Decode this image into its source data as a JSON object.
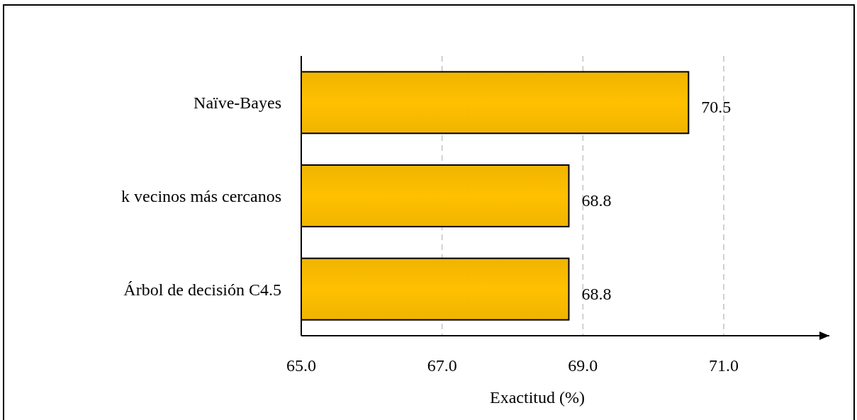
{
  "chart_data": {
    "type": "bar",
    "orientation": "horizontal",
    "categories": [
      "Naïve-Bayes",
      "k vecinos más cercanos",
      "Árbol de decisión C4.5"
    ],
    "values": [
      70.5,
      68.8,
      68.8
    ],
    "color": "#ffc000",
    "xlim": [
      65,
      72.5
    ],
    "xticks": [
      {
        "value": 65,
        "label": "65.0"
      },
      {
        "value": 67,
        "label": "67.0"
      },
      {
        "value": 69,
        "label": "69.0"
      },
      {
        "value": 71,
        "label": "71.0"
      }
    ],
    "xlabel": "Exactitud (%)",
    "grid": "x",
    "data_labels": true
  }
}
